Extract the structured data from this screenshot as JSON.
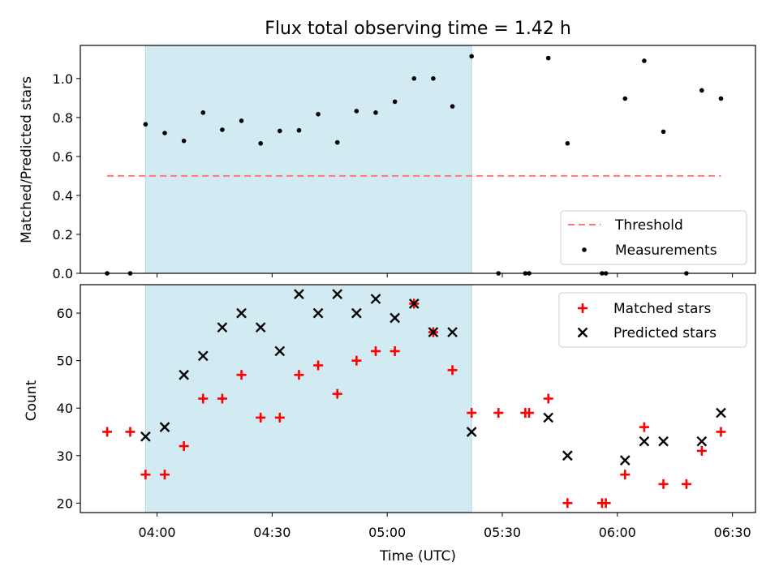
{
  "chart_data": [
    {
      "type": "scatter",
      "title": "Flux total observing time = 1.42 h",
      "xlabel": "",
      "ylabel": "Matched/Predicted stars",
      "ylim": [
        0,
        1.17
      ],
      "yticks": [
        "0.0",
        "0.2",
        "0.4",
        "0.6",
        "0.8",
        "1.0"
      ],
      "ytick_values": [
        0,
        0.2,
        0.4,
        0.6,
        0.8,
        1.0
      ],
      "shaded_region": {
        "start": "03:57",
        "end": "05:22",
        "color": "#add8e6"
      },
      "threshold": {
        "name": "Threshold",
        "value": 0.5,
        "x_start": "03:47",
        "x_end": "06:27",
        "color": "#ff7777"
      },
      "legend_position": "lower-right",
      "series": [
        {
          "name": "Measurements",
          "points": [
            [
              "03:47",
              0.0
            ],
            [
              "03:53",
              0.0
            ],
            [
              "03:57",
              0.765
            ],
            [
              "04:02",
              0.72
            ],
            [
              "04:07",
              0.68
            ],
            [
              "04:12",
              0.825
            ],
            [
              "04:17",
              0.737
            ],
            [
              "04:22",
              0.783
            ],
            [
              "04:27",
              0.667
            ],
            [
              "04:32",
              0.731
            ],
            [
              "04:37",
              0.734
            ],
            [
              "04:42",
              0.817
            ],
            [
              "04:47",
              0.672
            ],
            [
              "04:52",
              0.833
            ],
            [
              "04:57",
              0.825
            ],
            [
              "05:02",
              0.881
            ],
            [
              "05:07",
              1.0
            ],
            [
              "05:12",
              1.0
            ],
            [
              "05:17",
              0.857
            ],
            [
              "05:22",
              1.114
            ],
            [
              "05:29",
              0.0
            ],
            [
              "05:36",
              0.0
            ],
            [
              "05:37",
              0.0
            ],
            [
              "05:42",
              1.105
            ],
            [
              "05:47",
              0.667
            ],
            [
              "05:56",
              0.0
            ],
            [
              "05:57",
              0.0
            ],
            [
              "06:02",
              0.897
            ],
            [
              "06:07",
              1.091
            ],
            [
              "06:12",
              0.727
            ],
            [
              "06:18",
              0.0
            ],
            [
              "06:22",
              0.939
            ],
            [
              "06:27",
              0.897
            ]
          ]
        }
      ]
    },
    {
      "type": "scatter",
      "title": "",
      "xlabel": "Time (UTC)",
      "ylabel": "Count",
      "ylim": [
        18,
        66
      ],
      "yticks": [
        "20",
        "30",
        "40",
        "50",
        "60"
      ],
      "ytick_values": [
        20,
        30,
        40,
        50,
        60
      ],
      "xlim": [
        "03:40",
        "06:36"
      ],
      "xticks": [
        "04:00",
        "04:30",
        "05:00",
        "05:30",
        "06:00",
        "06:30"
      ],
      "shaded_region": {
        "start": "03:57",
        "end": "05:22",
        "color": "#add8e6"
      },
      "legend_position": "upper-right",
      "series": [
        {
          "name": "Matched stars",
          "marker": "plus",
          "color": "#ff0000",
          "points": [
            [
              "03:47",
              35
            ],
            [
              "03:53",
              35
            ],
            [
              "03:57",
              26
            ],
            [
              "04:02",
              26
            ],
            [
              "04:07",
              32
            ],
            [
              "04:12",
              42
            ],
            [
              "04:17",
              42
            ],
            [
              "04:22",
              47
            ],
            [
              "04:27",
              38
            ],
            [
              "04:32",
              38
            ],
            [
              "04:37",
              47
            ],
            [
              "04:42",
              49
            ],
            [
              "04:47",
              43
            ],
            [
              "04:52",
              50
            ],
            [
              "04:57",
              52
            ],
            [
              "05:02",
              52
            ],
            [
              "05:07",
              62
            ],
            [
              "05:12",
              56
            ],
            [
              "05:17",
              48
            ],
            [
              "05:22",
              39
            ],
            [
              "05:29",
              39
            ],
            [
              "05:36",
              39
            ],
            [
              "05:37",
              39
            ],
            [
              "05:42",
              42
            ],
            [
              "05:47",
              20
            ],
            [
              "05:56",
              20
            ],
            [
              "05:57",
              20
            ],
            [
              "06:02",
              26
            ],
            [
              "06:07",
              36
            ],
            [
              "06:12",
              24
            ],
            [
              "06:18",
              24
            ],
            [
              "06:22",
              31
            ],
            [
              "06:27",
              35
            ]
          ]
        },
        {
          "name": "Predicted stars",
          "marker": "x",
          "color": "#000000",
          "points": [
            [
              "03:57",
              34
            ],
            [
              "04:02",
              36
            ],
            [
              "04:07",
              47
            ],
            [
              "04:12",
              51
            ],
            [
              "04:17",
              57
            ],
            [
              "04:22",
              60
            ],
            [
              "04:27",
              57
            ],
            [
              "04:32",
              52
            ],
            [
              "04:37",
              64
            ],
            [
              "04:42",
              60
            ],
            [
              "04:47",
              64
            ],
            [
              "04:52",
              60
            ],
            [
              "04:57",
              63
            ],
            [
              "05:02",
              59
            ],
            [
              "05:07",
              62
            ],
            [
              "05:12",
              56
            ],
            [
              "05:17",
              56
            ],
            [
              "05:22",
              35
            ],
            [
              "05:42",
              38
            ],
            [
              "05:47",
              30
            ],
            [
              "06:02",
              29
            ],
            [
              "06:07",
              33
            ],
            [
              "06:12",
              33
            ],
            [
              "06:22",
              33
            ],
            [
              "06:27",
              39
            ]
          ]
        }
      ]
    }
  ]
}
